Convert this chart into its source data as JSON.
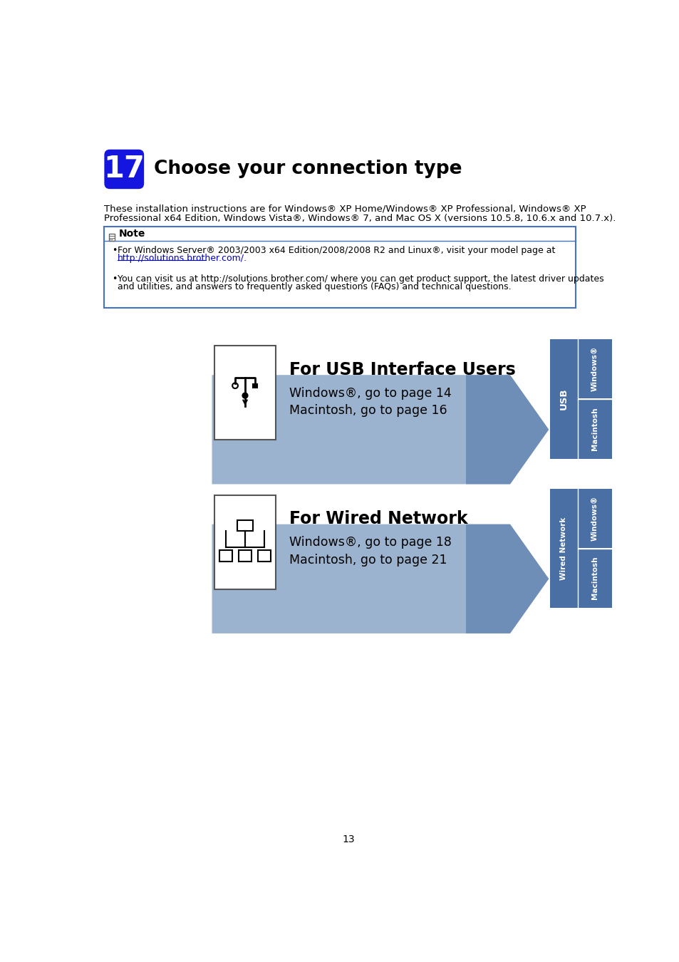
{
  "page_number": "13",
  "background_color": "#ffffff",
  "step_number": "17",
  "step_bg_color": "#1515e0",
  "step_title": "Choose your connection type",
  "step_title_fontsize": 19,
  "intro_text_line1": "These installation instructions are for Windows® XP Home/Windows® XP Professional, Windows® XP",
  "intro_text_line2": "Professional x64 Edition, Windows Vista®, Windows® 7, and Mac OS X (versions 10.5.8, 10.6.x and 10.7.x).",
  "note_title": "Note",
  "note_bullet1_line1": "For Windows Server® 2003/2003 x64 Edition/2008/2008 R2 and Linux®, visit your model page at",
  "note_bullet1_line2": "http://solutions.brother.com/.",
  "note_bullet2_line1": "You can visit us at http://solutions.brother.com/ where you can get product support, the latest driver updates",
  "note_bullet2_line2": "and utilities, and answers to frequently asked questions (FAQs) and technical questions.",
  "note_border_color": "#4472c4",
  "section1_title": "For USB Interface Users",
  "section1_line1": "Windows®, go to page 14",
  "section1_line2": "Macintosh, go to page 16",
  "section2_title": "For Wired Network",
  "section2_line1": "Windows®, go to page 18",
  "section2_line2": "Macintosh, go to page 21",
  "arrow_color_light": "#8fa8d0",
  "arrow_color_dark": "#3a5f9a",
  "tab_color": "#4a6fa5",
  "tab_text_color": "#ffffff",
  "tab_sep_color": "#6a8fc0"
}
